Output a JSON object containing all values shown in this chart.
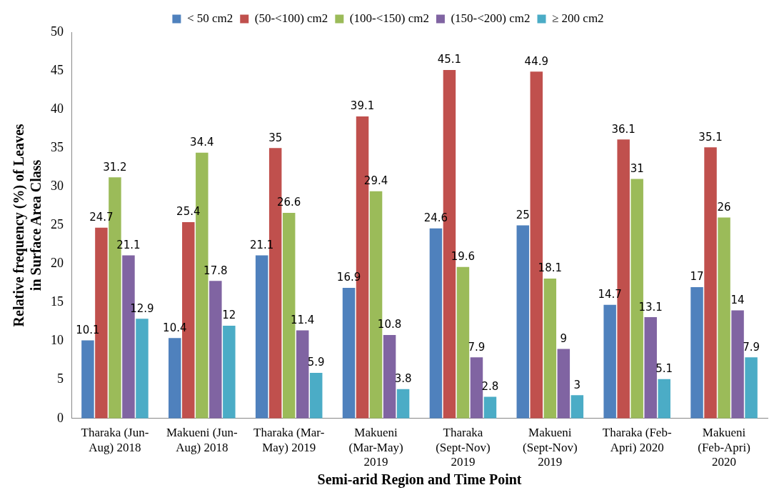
{
  "chart_data": {
    "type": "bar",
    "xlabel": "Semi-arid Region and Time Point",
    "ylabel": "Relative frequency (%) of Leaves in Surface Area Class",
    "categories": [
      "Tharaka (Jun-Aug) 2018",
      "Makueni (Jun-Aug) 2018",
      "Tharaka (Mar-May) 2019",
      "Makueni (Mar-May) 2019",
      "Tharaka (Sept-Nov) 2019",
      "Makueni (Sept-Nov) 2019",
      "Tharaka (Feb-Apri) 2020",
      "Makueni (Feb-Apri) 2020"
    ],
    "series": [
      {
        "name": "< 50 cm2",
        "color": "#4f81bd",
        "values": [
          10.1,
          10.4,
          21.1,
          16.9,
          24.6,
          25,
          14.7,
          17
        ]
      },
      {
        "name": "(50-<100) cm2",
        "color": "#c0504d",
        "values": [
          24.7,
          25.4,
          35,
          39.1,
          45.1,
          44.9,
          36.1,
          35.1
        ]
      },
      {
        "name": "(100-<150) cm2",
        "color": "#9bbb59",
        "values": [
          31.2,
          34.4,
          26.6,
          29.4,
          19.6,
          18.1,
          31,
          26
        ]
      },
      {
        "name": "(150-<200) cm2",
        "color": "#8064a2",
        "values": [
          21.1,
          17.8,
          11.4,
          10.8,
          7.9,
          9,
          13.1,
          14
        ]
      },
      {
        "name": "≥ 200 cm2",
        "color": "#4bacc6",
        "values": [
          12.9,
          12,
          5.9,
          3.8,
          2.8,
          3,
          5.1,
          7.9
        ]
      }
    ],
    "ylim": [
      0,
      50
    ],
    "yticks": [
      0,
      5,
      10,
      15,
      20,
      25,
      30,
      35,
      40,
      45,
      50
    ],
    "grid": false,
    "legend": "top",
    "data_labels": true
  }
}
